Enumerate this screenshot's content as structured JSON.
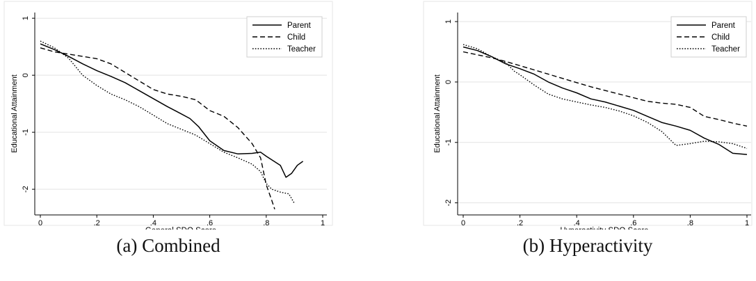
{
  "captions": [
    "(a) Combined",
    "(b) Hyperactivity"
  ],
  "chart_data": [
    {
      "type": "line",
      "title": "",
      "xlabel": "General SDQ Score",
      "ylabel": "Educational Attainment",
      "xlim": [
        0,
        1
      ],
      "ylim": [
        -2.45,
        1.1
      ],
      "xticks": [
        0,
        0.2,
        0.4,
        0.6,
        0.8,
        1
      ],
      "xtick_labels": [
        "0",
        ".2",
        ".4",
        ".6",
        ".8",
        "1"
      ],
      "yticks": [
        1,
        0,
        -1,
        -2
      ],
      "ytick_labels": [
        "1",
        "0",
        "-1",
        "-2"
      ],
      "grid": "horizontal",
      "legend_position": "top-right",
      "series": [
        {
          "name": "Parent",
          "dash": "solid",
          "x": [
            0,
            0.05,
            0.1,
            0.15,
            0.2,
            0.25,
            0.3,
            0.35,
            0.4,
            0.45,
            0.5,
            0.53,
            0.56,
            0.6,
            0.65,
            0.7,
            0.75,
            0.78,
            0.8,
            0.85,
            0.87,
            0.89,
            0.91,
            0.93
          ],
          "y": [
            0.55,
            0.45,
            0.33,
            0.2,
            0.08,
            -0.02,
            -0.13,
            -0.27,
            -0.41,
            -0.55,
            -0.68,
            -0.76,
            -0.9,
            -1.15,
            -1.32,
            -1.38,
            -1.37,
            -1.35,
            -1.42,
            -1.58,
            -1.79,
            -1.72,
            -1.58,
            -1.51
          ]
        },
        {
          "name": "Child",
          "dash": "dashed",
          "x": [
            0,
            0.05,
            0.1,
            0.15,
            0.2,
            0.25,
            0.3,
            0.35,
            0.4,
            0.45,
            0.5,
            0.55,
            0.6,
            0.65,
            0.7,
            0.75,
            0.78,
            0.8,
            0.82,
            0.83
          ],
          "y": [
            0.48,
            0.41,
            0.37,
            0.33,
            0.29,
            0.2,
            0.05,
            -0.1,
            -0.25,
            -0.33,
            -0.37,
            -0.43,
            -0.62,
            -0.72,
            -0.92,
            -1.2,
            -1.45,
            -1.92,
            -2.2,
            -2.35
          ]
        },
        {
          "name": "Teacher",
          "dash": "dotted",
          "x": [
            0,
            0.05,
            0.1,
            0.15,
            0.2,
            0.25,
            0.3,
            0.35,
            0.4,
            0.45,
            0.5,
            0.55,
            0.6,
            0.65,
            0.7,
            0.75,
            0.78,
            0.8,
            0.82,
            0.85,
            0.88,
            0.9
          ],
          "y": [
            0.6,
            0.48,
            0.3,
            0.0,
            -0.18,
            -0.33,
            -0.43,
            -0.55,
            -0.7,
            -0.85,
            -0.95,
            -1.05,
            -1.2,
            -1.35,
            -1.45,
            -1.56,
            -1.69,
            -1.9,
            -2.0,
            -2.05,
            -2.08,
            -2.25
          ]
        }
      ]
    },
    {
      "type": "line",
      "title": "",
      "xlabel": "Hyperactivity SDQ Score",
      "ylabel": "Educational Attainment",
      "xlim": [
        0,
        1
      ],
      "ylim": [
        -2.2,
        1.15
      ],
      "xticks": [
        0,
        0.2,
        0.4,
        0.6,
        0.8,
        1
      ],
      "xtick_labels": [
        "0",
        ".2",
        ".4",
        ".6",
        ".8",
        "1"
      ],
      "yticks": [
        1,
        0,
        -1,
        -2
      ],
      "ytick_labels": [
        "1",
        "0",
        "-1",
        "-2"
      ],
      "grid": "horizontal",
      "legend_position": "top-right",
      "series": [
        {
          "name": "Parent",
          "dash": "solid",
          "x": [
            0,
            0.05,
            0.1,
            0.15,
            0.2,
            0.25,
            0.3,
            0.35,
            0.4,
            0.45,
            0.5,
            0.55,
            0.6,
            0.65,
            0.7,
            0.75,
            0.8,
            0.85,
            0.9,
            0.95,
            1.0
          ],
          "y": [
            0.58,
            0.52,
            0.42,
            0.3,
            0.22,
            0.13,
            0.0,
            -0.1,
            -0.18,
            -0.28,
            -0.33,
            -0.4,
            -0.47,
            -0.57,
            -0.67,
            -0.73,
            -0.8,
            -0.93,
            -1.03,
            -1.18,
            -1.2
          ]
        },
        {
          "name": "Child",
          "dash": "dashed",
          "x": [
            0,
            0.05,
            0.1,
            0.15,
            0.2,
            0.25,
            0.3,
            0.35,
            0.4,
            0.45,
            0.5,
            0.55,
            0.6,
            0.65,
            0.7,
            0.75,
            0.8,
            0.85,
            0.9,
            0.95,
            1.0
          ],
          "y": [
            0.5,
            0.45,
            0.4,
            0.34,
            0.27,
            0.2,
            0.13,
            0.06,
            -0.01,
            -0.08,
            -0.14,
            -0.2,
            -0.26,
            -0.32,
            -0.35,
            -0.37,
            -0.42,
            -0.57,
            -0.62,
            -0.68,
            -0.73
          ]
        },
        {
          "name": "Teacher",
          "dash": "dotted",
          "x": [
            0,
            0.05,
            0.1,
            0.15,
            0.18,
            0.2,
            0.25,
            0.3,
            0.35,
            0.4,
            0.45,
            0.5,
            0.55,
            0.6,
            0.65,
            0.7,
            0.75,
            0.8,
            0.85,
            0.9,
            0.95,
            1.0
          ],
          "y": [
            0.62,
            0.55,
            0.42,
            0.32,
            0.18,
            0.12,
            -0.05,
            -0.2,
            -0.28,
            -0.33,
            -0.38,
            -0.42,
            -0.48,
            -0.56,
            -0.67,
            -0.82,
            -1.05,
            -1.02,
            -0.98,
            -0.99,
            -1.02,
            -1.1
          ]
        }
      ]
    }
  ]
}
